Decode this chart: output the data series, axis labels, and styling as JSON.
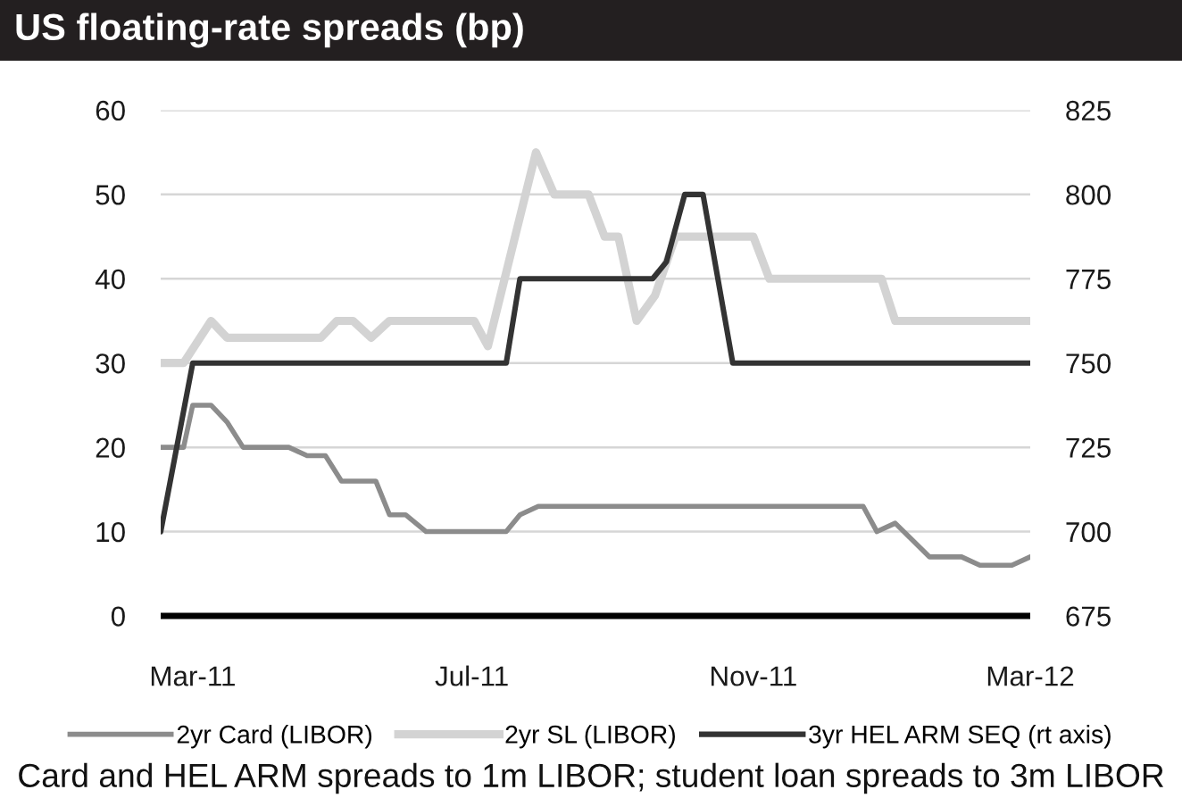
{
  "chart_data": {
    "type": "line",
    "title": "US floating-rate spreads (bp)",
    "annotations": [
      "Card and HEL ARM spreads to 1m LIBOR; student loan spreads to 3m LIBOR"
    ],
    "xlim": [
      "2011-02-15",
      "2012-03-01"
    ],
    "xticks": [
      {
        "value": "2011-03-01",
        "label": "Mar-11"
      },
      {
        "value": "2011-07-01",
        "label": "Jul-11"
      },
      {
        "value": "2011-11-01",
        "label": "Nov-11"
      },
      {
        "value": "2012-03-01",
        "label": "Mar-12"
      }
    ],
    "ylim": [
      0,
      60
    ],
    "yticks": [
      0,
      10,
      20,
      30,
      40,
      50,
      60
    ],
    "y2lim": [
      675,
      825
    ],
    "y2ticks": [
      675,
      700,
      725,
      750,
      775,
      800,
      825
    ],
    "grid": "y",
    "legend": "bottom",
    "series": [
      {
        "name": "2yr Card (LIBOR)",
        "color": "#8c8c8c",
        "x": [
          "2011-02-15",
          "2011-02-25",
          "2011-03-01",
          "2011-03-09",
          "2011-03-16",
          "2011-03-23",
          "2011-04-12",
          "2011-04-20",
          "2011-04-28",
          "2011-05-05",
          "2011-05-20",
          "2011-05-26",
          "2011-06-02",
          "2011-06-11",
          "2011-07-16",
          "2011-07-22",
          "2011-07-30",
          "2011-12-19",
          "2011-12-25",
          "2012-01-02",
          "2012-01-17",
          "2012-01-31",
          "2012-02-08",
          "2012-02-22",
          "2012-03-01"
        ],
        "values": [
          20,
          20,
          25,
          25,
          23,
          20,
          20,
          19,
          19,
          16,
          16,
          12,
          12,
          10,
          10,
          12,
          13,
          13,
          10,
          11,
          7,
          7,
          6,
          6,
          7
        ]
      },
      {
        "name": "2yr SL (LIBOR)",
        "color": "#d3d3d3",
        "x": [
          "2011-02-15",
          "2011-02-25",
          "2011-03-09",
          "2011-03-16",
          "2011-04-26",
          "2011-05-03",
          "2011-05-10",
          "2011-05-18",
          "2011-05-26",
          "2011-07-02",
          "2011-07-08",
          "2011-07-29",
          "2011-08-06",
          "2011-08-21",
          "2011-08-28",
          "2011-09-03",
          "2011-09-11",
          "2011-09-19",
          "2011-09-28",
          "2011-11-01",
          "2011-11-08",
          "2011-12-27",
          "2012-01-02",
          "2012-03-01"
        ],
        "values": [
          30,
          30,
          35,
          33,
          33,
          35,
          35,
          33,
          35,
          35,
          32,
          55,
          50,
          50,
          45,
          45,
          35,
          38,
          45,
          45,
          40,
          40,
          35,
          35
        ]
      },
      {
        "name": "3yr HEL ARM SEQ (rt axis)",
        "color": "#333333",
        "axis": "y2",
        "x": [
          "2011-02-15",
          "2011-03-01",
          "2011-07-16",
          "2011-07-22",
          "2011-09-18",
          "2011-09-24",
          "2011-10-02",
          "2011-10-10",
          "2011-10-23",
          "2012-03-01"
        ],
        "values": [
          700,
          750,
          750,
          775,
          775,
          780,
          800,
          800,
          750,
          750
        ]
      }
    ]
  }
}
